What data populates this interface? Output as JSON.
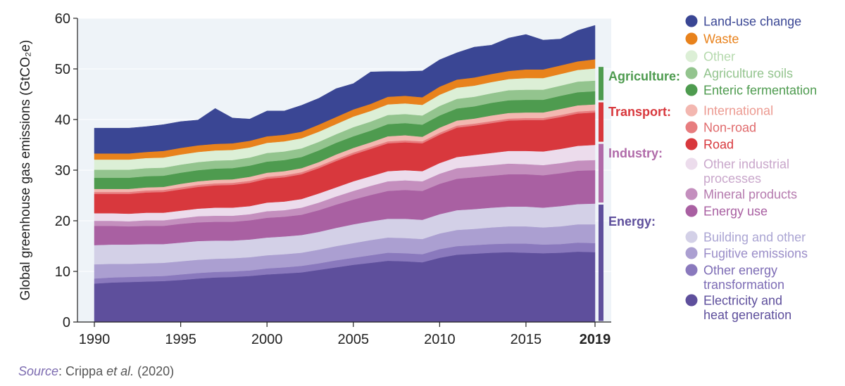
{
  "chart_data": {
    "type": "area",
    "stacked": true,
    "ylabel": "Global greenhouse gas emissions (GtCO₂e)",
    "xlabel": "",
    "xlim": [
      1990,
      2019
    ],
    "ylim": [
      0,
      60
    ],
    "xticks": [
      "1990",
      "1995",
      "2000",
      "2005",
      "2010",
      "2015",
      "2019"
    ],
    "yticks": [
      "0",
      "10",
      "20",
      "30",
      "40",
      "50",
      "60"
    ],
    "highlight_xtick": "2019",
    "x": [
      1990,
      1991,
      1992,
      1993,
      1994,
      1995,
      1996,
      1997,
      1998,
      1999,
      2000,
      2001,
      2002,
      2003,
      2004,
      2005,
      2006,
      2007,
      2008,
      2009,
      2010,
      2011,
      2012,
      2013,
      2014,
      2015,
      2016,
      2017,
      2018,
      2019
    ],
    "series": [
      {
        "name": "Electricity and heat generation",
        "sector": "Energy",
        "color": "#5e4f9c",
        "values": [
          7.6,
          7.8,
          7.9,
          8.0,
          8.1,
          8.3,
          8.6,
          8.8,
          8.9,
          9.1,
          9.4,
          9.6,
          9.8,
          10.3,
          10.8,
          11.3,
          11.7,
          12.1,
          12.0,
          11.8,
          12.7,
          13.3,
          13.5,
          13.7,
          13.8,
          13.7,
          13.6,
          13.7,
          13.9,
          13.8
        ]
      },
      {
        "name": "Other energy transformation",
        "sector": "Energy",
        "color": "#8a79bd",
        "values": [
          1.0,
          1.0,
          1.0,
          1.0,
          1.0,
          1.1,
          1.1,
          1.1,
          1.1,
          1.1,
          1.2,
          1.2,
          1.3,
          1.3,
          1.4,
          1.4,
          1.5,
          1.6,
          1.6,
          1.6,
          1.7,
          1.7,
          1.7,
          1.7,
          1.7,
          1.8,
          1.7,
          1.7,
          1.8,
          1.8
        ]
      },
      {
        "name": "Fugitive emissions",
        "sector": "Energy",
        "color": "#ab9fd1",
        "values": [
          2.8,
          2.7,
          2.6,
          2.6,
          2.6,
          2.6,
          2.6,
          2.6,
          2.6,
          2.6,
          2.6,
          2.6,
          2.6,
          2.7,
          2.8,
          2.9,
          3.0,
          3.0,
          3.0,
          3.0,
          3.1,
          3.2,
          3.2,
          3.3,
          3.4,
          3.4,
          3.4,
          3.5,
          3.6,
          3.7
        ]
      },
      {
        "name": "Building and other",
        "sector": "Energy",
        "color": "#d3d0e7",
        "values": [
          3.8,
          3.8,
          3.8,
          3.8,
          3.7,
          3.7,
          3.7,
          3.6,
          3.5,
          3.5,
          3.5,
          3.5,
          3.5,
          3.5,
          3.6,
          3.7,
          3.7,
          3.7,
          3.8,
          3.8,
          3.8,
          3.9,
          3.9,
          3.9,
          3.9,
          3.9,
          3.9,
          4.0,
          4.0,
          4.1
        ]
      },
      {
        "name": "Energy use",
        "sector": "Industry",
        "color": "#a960a2",
        "values": [
          3.8,
          3.7,
          3.6,
          3.6,
          3.6,
          3.7,
          3.7,
          3.7,
          3.7,
          3.8,
          3.9,
          3.9,
          4.0,
          4.3,
          4.6,
          4.9,
          5.2,
          5.5,
          5.7,
          5.7,
          6.0,
          6.2,
          6.3,
          6.3,
          6.4,
          6.4,
          6.4,
          6.5,
          6.6,
          6.6
        ]
      },
      {
        "name": "Mineral products",
        "sector": "Industry",
        "color": "#c48fbe",
        "values": [
          1.0,
          1.0,
          1.0,
          1.1,
          1.1,
          1.1,
          1.2,
          1.2,
          1.2,
          1.2,
          1.3,
          1.3,
          1.4,
          1.5,
          1.6,
          1.7,
          1.8,
          1.9,
          1.9,
          1.9,
          2.0,
          2.1,
          2.1,
          2.1,
          2.1,
          2.0,
          2.0,
          2.0,
          2.0,
          2.0
        ]
      },
      {
        "name": "Other industrial processes",
        "sector": "Industry",
        "color": "#ecdcec",
        "values": [
          1.5,
          1.5,
          1.5,
          1.5,
          1.5,
          1.5,
          1.5,
          1.6,
          1.6,
          1.6,
          1.7,
          1.7,
          1.7,
          1.8,
          1.8,
          1.9,
          1.9,
          2.0,
          2.0,
          2.0,
          2.1,
          2.2,
          2.3,
          2.4,
          2.5,
          2.6,
          2.7,
          2.8,
          2.9,
          3.0
        ]
      },
      {
        "name": "Road",
        "sector": "Transport",
        "color": "#d8383d",
        "values": [
          3.8,
          3.8,
          3.9,
          4.0,
          4.1,
          4.2,
          4.3,
          4.4,
          4.5,
          4.6,
          4.7,
          4.8,
          4.9,
          5.0,
          5.2,
          5.3,
          5.4,
          5.5,
          5.5,
          5.5,
          5.6,
          5.8,
          5.8,
          5.9,
          6.0,
          6.1,
          6.2,
          6.3,
          6.4,
          6.4
        ]
      },
      {
        "name": "Non-road",
        "sector": "Transport",
        "color": "#e77d7f",
        "values": [
          0.4,
          0.4,
          0.4,
          0.4,
          0.4,
          0.4,
          0.4,
          0.4,
          0.4,
          0.4,
          0.4,
          0.4,
          0.4,
          0.4,
          0.4,
          0.4,
          0.4,
          0.4,
          0.4,
          0.4,
          0.4,
          0.4,
          0.4,
          0.4,
          0.4,
          0.4,
          0.4,
          0.4,
          0.4,
          0.4
        ]
      },
      {
        "name": "International",
        "sector": "Transport",
        "color": "#f3b7b0",
        "values": [
          0.6,
          0.6,
          0.6,
          0.6,
          0.6,
          0.7,
          0.7,
          0.7,
          0.7,
          0.8,
          0.8,
          0.8,
          0.8,
          0.8,
          0.9,
          0.9,
          0.9,
          1.0,
          1.0,
          0.9,
          1.0,
          1.0,
          1.0,
          1.1,
          1.1,
          1.1,
          1.1,
          1.2,
          1.2,
          1.2
        ]
      },
      {
        "name": "Enteric fermentation",
        "sector": "Agriculture",
        "color": "#4e9b4f",
        "values": [
          2.2,
          2.2,
          2.2,
          2.2,
          2.2,
          2.2,
          2.2,
          2.2,
          2.2,
          2.2,
          2.2,
          2.2,
          2.2,
          2.3,
          2.3,
          2.3,
          2.3,
          2.4,
          2.4,
          2.4,
          2.4,
          2.4,
          2.4,
          2.5,
          2.5,
          2.5,
          2.5,
          2.6,
          2.6,
          2.6
        ]
      },
      {
        "name": "Agriculture soils",
        "sector": "Agriculture",
        "color": "#93c48e",
        "values": [
          1.6,
          1.6,
          1.6,
          1.6,
          1.6,
          1.6,
          1.6,
          1.6,
          1.6,
          1.6,
          1.7,
          1.7,
          1.7,
          1.7,
          1.7,
          1.8,
          1.8,
          1.8,
          1.8,
          1.8,
          1.9,
          1.9,
          1.9,
          1.9,
          2.0,
          2.0,
          2.0,
          2.0,
          2.1,
          2.1
        ]
      },
      {
        "name": "Other",
        "sector": "Agriculture",
        "color": "#dcefd6",
        "values": [
          2.0,
          2.0,
          2.0,
          2.0,
          2.0,
          2.0,
          2.0,
          2.0,
          2.0,
          2.0,
          2.0,
          2.0,
          2.0,
          2.0,
          2.0,
          2.1,
          2.1,
          2.1,
          2.1,
          2.1,
          2.2,
          2.2,
          2.2,
          2.2,
          2.2,
          2.3,
          2.3,
          2.3,
          2.3,
          2.4
        ]
      },
      {
        "name": "Waste",
        "sector": "",
        "color": "#e8821c",
        "values": [
          1.2,
          1.2,
          1.2,
          1.2,
          1.3,
          1.3,
          1.3,
          1.3,
          1.3,
          1.3,
          1.3,
          1.3,
          1.3,
          1.4,
          1.4,
          1.4,
          1.4,
          1.5,
          1.5,
          1.5,
          1.6,
          1.6,
          1.6,
          1.6,
          1.6,
          1.7,
          1.7,
          1.7,
          1.7,
          1.8
        ]
      },
      {
        "name": "Land-use change",
        "sector": "",
        "color": "#3a4694",
        "values": [
          5.0,
          5.0,
          5.0,
          5.0,
          5.2,
          5.2,
          5.0,
          7.0,
          5.0,
          4.3,
          5.0,
          4.7,
          5.2,
          5.2,
          5.6,
          5.1,
          6.3,
          5.0,
          4.8,
          5.2,
          5.3,
          5.3,
          6.0,
          5.7,
          6.5,
          6.9,
          5.8,
          5.2,
          6.1,
          6.7
        ]
      }
    ],
    "legend": [
      {
        "label": "Land-use change",
        "color": "#3a4694",
        "text_color": "#3a4694"
      },
      {
        "label": "Waste",
        "color": "#e8821c",
        "text_color": "#e8821c"
      },
      {
        "label": "Other",
        "color": "#dcefd6",
        "text_color": "#b5d9ad"
      },
      {
        "label": "Agriculture soils",
        "color": "#93c48e",
        "text_color": "#93c48e"
      },
      {
        "label": "Enteric fermentation",
        "color": "#4e9b4f",
        "text_color": "#4e9b4f"
      },
      {
        "label": "International",
        "color": "#f3b7b0",
        "text_color": "#ec9a91"
      },
      {
        "label": "Non-road",
        "color": "#e77d7f",
        "text_color": "#e06a6c"
      },
      {
        "label": "Road",
        "color": "#d8383d",
        "text_color": "#d8383d"
      },
      {
        "label": "Other industrial processes",
        "color": "#ecdcec",
        "text_color": "#c9a7cb"
      },
      {
        "label": "Mineral products",
        "color": "#c48fbe",
        "text_color": "#b57aae"
      },
      {
        "label": "Energy use",
        "color": "#a960a2",
        "text_color": "#a960a2"
      },
      {
        "label": "Building and other",
        "color": "#d3d0e7",
        "text_color": "#aba5d3"
      },
      {
        "label": "Fugitive emissions",
        "color": "#ab9fd1",
        "text_color": "#9a8dc8"
      },
      {
        "label": "Other energy transformation",
        "color": "#8a79bd",
        "text_color": "#7d6cb5"
      },
      {
        "label": "Electricity and heat generation",
        "color": "#5e4f9c",
        "text_color": "#5e4f9c"
      }
    ],
    "sector_labels": [
      {
        "label": "Agriculture:",
        "color": "#4e9b4f",
        "range": [
          43.6,
          50.6
        ]
      },
      {
        "label": "Transport:",
        "color": "#d8383d",
        "range": [
          35.4,
          43.6
        ]
      },
      {
        "label": "Industry:",
        "color": "#b06aa9",
        "range": [
          23.4,
          35.4
        ]
      },
      {
        "label": "Energy:",
        "color": "#5e4f9c",
        "range": [
          0,
          23.4
        ]
      }
    ],
    "plot_background": "#eef3f8"
  },
  "source": {
    "label": "Source",
    "text_1": ": Crippa ",
    "text_italic": "et al.",
    "text_2": " (2020)"
  }
}
